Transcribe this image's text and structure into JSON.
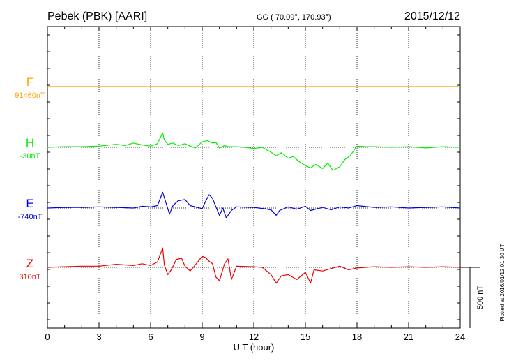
{
  "header": {
    "station": "Pebek (PBK)  [AARI]",
    "coords": "GG ( 70.09°, 170.93°)",
    "date": "2015/12/12"
  },
  "plotted_note": "Plotted at 2016/01/12 01:30 UT",
  "chart_data": {
    "type": "line",
    "xlabel": "U T (hour)",
    "xlim": [
      0,
      24
    ],
    "x_ticks": [
      "0",
      "3",
      "6",
      "9",
      "12",
      "15",
      "18",
      "21",
      "24"
    ],
    "scale_bar_label": "500 nT",
    "grid": true,
    "series": [
      {
        "name": "F",
        "baseline_label": "91460nT",
        "color": "#ffa500",
        "x": [
          0,
          24
        ],
        "y": [
          0,
          0
        ]
      },
      {
        "name": "H",
        "baseline_label": "-30nT",
        "color": "#00ee00",
        "x": [
          0,
          1,
          2,
          3,
          4,
          4.5,
          5,
          5.5,
          6,
          6.4,
          6.7,
          6.8,
          7,
          7.3,
          7.6,
          8,
          8.3,
          8.6,
          9,
          9.3,
          9.6,
          9.8,
          10,
          10.3,
          10.5,
          11,
          11.5,
          12,
          12.5,
          13,
          13.3,
          13.6,
          14,
          14.3,
          14.6,
          15,
          15.3,
          15.6,
          16,
          16.3,
          16.6,
          17,
          17.3,
          17.6,
          18,
          18.5,
          19,
          20,
          21,
          22,
          23,
          24
        ],
        "y": [
          0,
          5,
          5,
          10,
          25,
          15,
          35,
          20,
          10,
          30,
          120,
          60,
          25,
          35,
          15,
          30,
          10,
          -5,
          45,
          55,
          35,
          40,
          -5,
          15,
          5,
          5,
          0,
          -10,
          0,
          -40,
          -70,
          -45,
          -90,
          -75,
          -115,
          -150,
          -170,
          -140,
          -175,
          -130,
          -190,
          -160,
          -100,
          -70,
          10,
          5,
          5,
          0,
          5,
          -5,
          5,
          0
        ]
      },
      {
        "name": "E",
        "baseline_label": "-740nT",
        "color": "#0000dd",
        "x": [
          0,
          1,
          2,
          3,
          4,
          5,
          5.5,
          6,
          6.4,
          6.7,
          6.9,
          7.1,
          7.3,
          7.6,
          8,
          8.3,
          8.6,
          9,
          9.2,
          9.4,
          9.6,
          9.8,
          10,
          10.2,
          10.4,
          10.7,
          11,
          12,
          12.6,
          13,
          13.3,
          13.5,
          14,
          14.5,
          15,
          15.3,
          16,
          16.5,
          17,
          17.5,
          18,
          19,
          20,
          21,
          22,
          23,
          24
        ],
        "y": [
          0,
          5,
          5,
          10,
          5,
          0,
          15,
          10,
          20,
          130,
          40,
          -50,
          20,
          60,
          70,
          20,
          10,
          -5,
          55,
          110,
          80,
          10,
          -60,
          0,
          -80,
          -20,
          10,
          5,
          -5,
          -15,
          -60,
          -20,
          10,
          -10,
          15,
          -20,
          5,
          -15,
          10,
          0,
          20,
          5,
          10,
          0,
          5,
          10,
          0
        ]
      },
      {
        "name": "Z",
        "baseline_label": "310nT",
        "color": "#ee0000",
        "x": [
          0,
          1,
          2,
          3,
          4,
          5,
          5.5,
          6,
          6.4,
          6.7,
          6.8,
          7,
          7.2,
          7.5,
          7.8,
          8,
          8.3,
          8.6,
          9,
          9.2,
          9.4,
          9.6,
          9.8,
          10,
          10.3,
          10.5,
          10.7,
          11,
          12,
          12.5,
          13,
          13.3,
          13.6,
          14,
          14.5,
          15,
          15.3,
          15.5,
          16,
          16.5,
          17,
          17.5,
          18,
          19,
          20,
          21,
          22,
          23,
          24
        ],
        "y": [
          0,
          5,
          10,
          10,
          25,
          15,
          30,
          15,
          45,
          160,
          20,
          -60,
          -20,
          65,
          75,
          10,
          -30,
          20,
          90,
          80,
          50,
          30,
          -80,
          -110,
          30,
          70,
          -100,
          10,
          5,
          0,
          -60,
          -130,
          -70,
          -60,
          -100,
          -40,
          -130,
          -20,
          -30,
          -10,
          10,
          -20,
          -5,
          5,
          0,
          5,
          0,
          5,
          0
        ]
      }
    ]
  }
}
